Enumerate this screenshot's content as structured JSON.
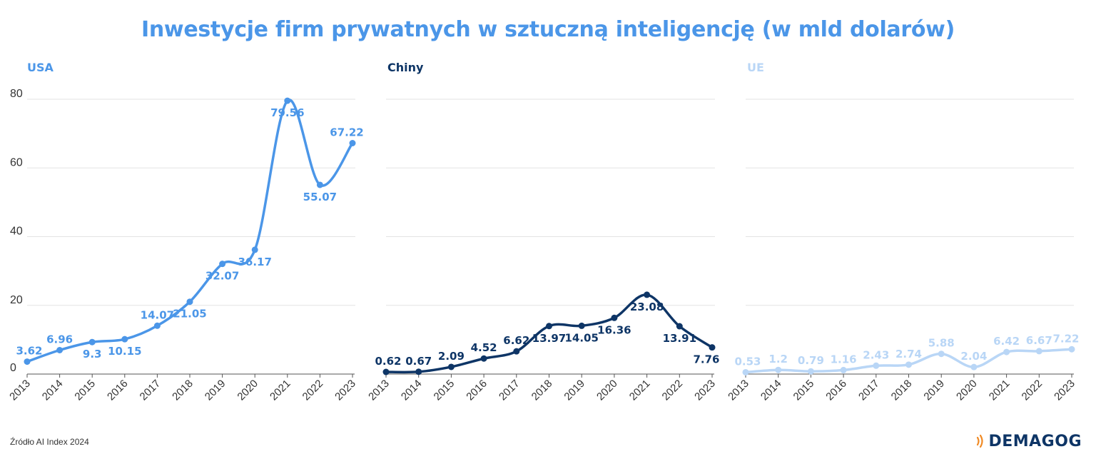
{
  "title": "Inwestycje firm prywatnych w sztuczną inteligencję (w mld dolarów)",
  "source": "Źródło AI Index 2024",
  "brand": "DEMAGOG",
  "chart_data": [
    {
      "type": "line",
      "title": "USA",
      "color": "#4b96e8",
      "x": [
        "2013",
        "2014",
        "2015",
        "2016",
        "2017",
        "2018",
        "2019",
        "2020",
        "2021",
        "2022",
        "2023"
      ],
      "values": [
        3.62,
        6.96,
        9.3,
        10.15,
        14.07,
        21.05,
        32.07,
        36.17,
        79.56,
        55.07,
        67.22
      ],
      "labels": [
        "3.62",
        "6.96",
        "9.3",
        "10.15",
        "14.07",
        "21.05",
        "32.07",
        "36.17",
        "79.56",
        "55.07",
        "67.22"
      ],
      "ylim": [
        0,
        80
      ],
      "yticks": [
        "0",
        "20",
        "40",
        "60",
        "80"
      ],
      "grid": true
    },
    {
      "type": "line",
      "title": "Chiny",
      "color": "#0e3566",
      "x": [
        "2013",
        "2014",
        "2015",
        "2016",
        "2017",
        "2018",
        "2019",
        "2020",
        "2021",
        "2022",
        "2023"
      ],
      "values": [
        0.62,
        0.67,
        2.09,
        4.52,
        6.62,
        13.97,
        14.05,
        16.36,
        23.08,
        13.91,
        7.76
      ],
      "labels": [
        "0.62",
        "0.67",
        "2.09",
        "4.52",
        "6.62",
        "13.97",
        "14.05",
        "16.36",
        "23.08",
        "13.91",
        "7.76"
      ],
      "ylim": [
        0,
        80
      ],
      "grid": true
    },
    {
      "type": "line",
      "title": "UE",
      "color": "#b9d6f6",
      "x": [
        "2013",
        "2014",
        "2015",
        "2016",
        "2017",
        "2018",
        "2019",
        "2020",
        "2021",
        "2022",
        "2023"
      ],
      "values": [
        0.53,
        1.2,
        0.79,
        1.16,
        2.43,
        2.74,
        5.88,
        2.04,
        6.42,
        6.67,
        7.22
      ],
      "labels": [
        "0.53",
        "1.2",
        "0.79",
        "1.16",
        "2.43",
        "2.74",
        "5.88",
        "2.04",
        "6.42",
        "6.67",
        "7.22"
      ],
      "ylim": [
        0,
        80
      ],
      "grid": true
    }
  ]
}
